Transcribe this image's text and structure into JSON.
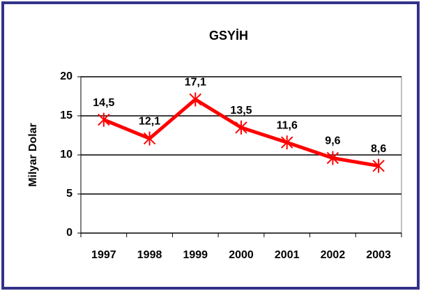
{
  "chart_data": {
    "type": "line",
    "title": "GSYİH",
    "y_label": "Milyar Dolar",
    "categories": [
      "1997",
      "1998",
      "1999",
      "2000",
      "2001",
      "2002",
      "2003"
    ],
    "series": [
      {
        "name": "GSYİH",
        "color": "#ff0000",
        "values": [
          14.5,
          12.1,
          17.1,
          13.5,
          11.6,
          9.6,
          8.6
        ],
        "value_labels": [
          "14,5",
          "12,1",
          "17,1",
          "13,5",
          "11,6",
          "9,6",
          "8,6"
        ]
      }
    ],
    "ylim": [
      0,
      20
    ],
    "yticks": [
      0,
      5,
      10,
      15,
      20
    ],
    "grid": true
  }
}
